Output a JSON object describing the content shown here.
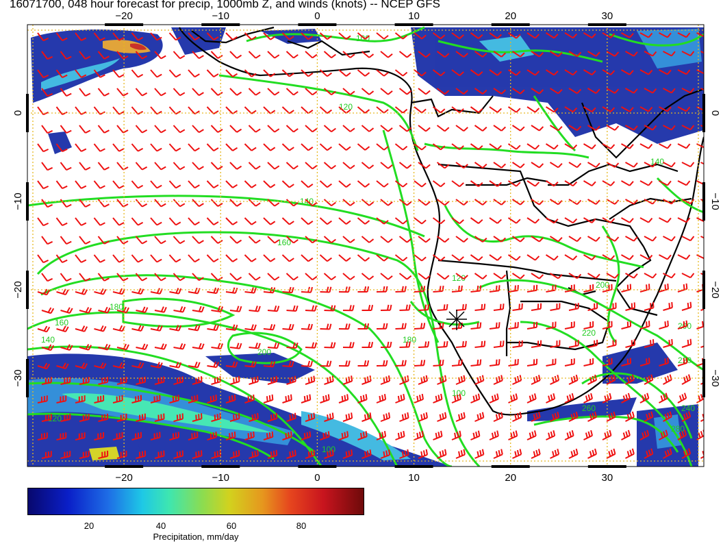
{
  "title": "16071700, 048 hour forecast for precip, 1000mb Z, and winds (knots) -- NCEP GFS",
  "map": {
    "lon_range": [
      -30,
      40
    ],
    "lat_range": [
      -40,
      10
    ],
    "lon_ticks": [
      -20,
      -10,
      0,
      10,
      20,
      30
    ],
    "lat_ticks": [
      0,
      -10,
      -20,
      -30
    ],
    "gridlines": "dotted",
    "contour_labels": [
      "100",
      "120",
      "140",
      "160",
      "180",
      "200",
      "220",
      "240",
      "260",
      "280"
    ],
    "colors": {
      "contour": "#22dd22",
      "barb": "#ee1111",
      "coast": "#000000",
      "grid": "#e6b820"
    }
  },
  "colorbar": {
    "ticks": [
      "20",
      "40",
      "60",
      "80"
    ],
    "label": "Precipitation, mm/day"
  }
}
